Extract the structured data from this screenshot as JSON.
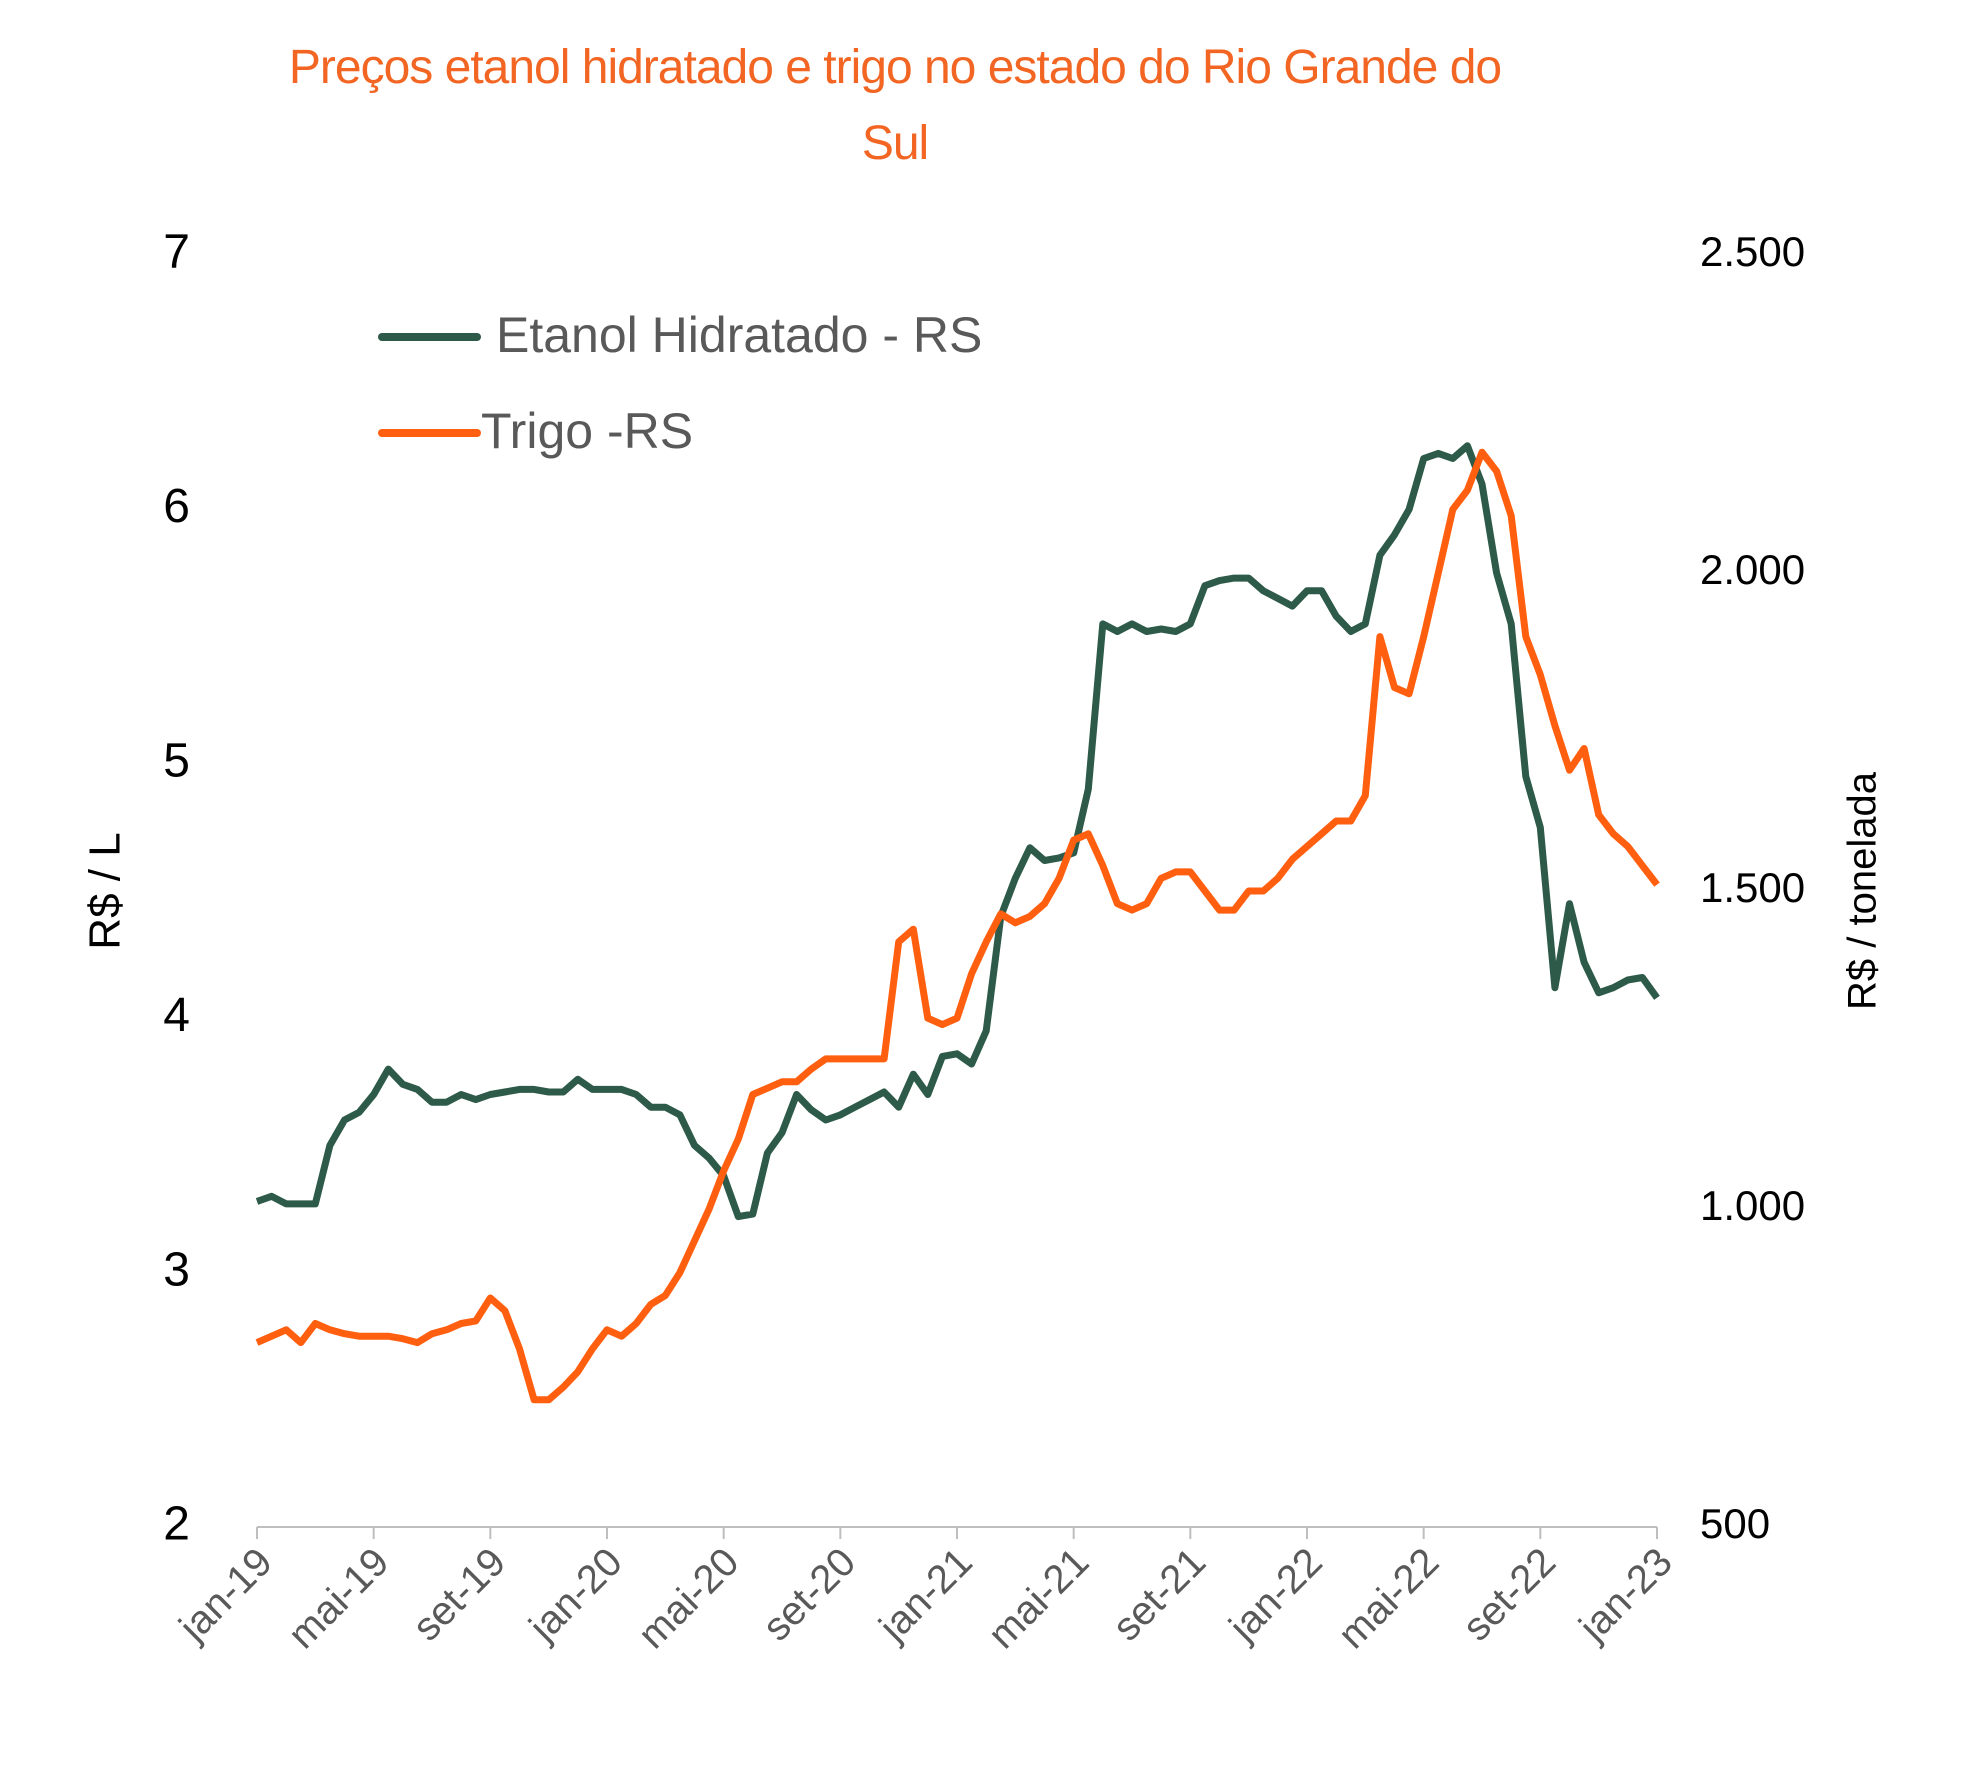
{
  "chart_data": {
    "type": "line",
    "title": "Preços etanol hidratado e trigo no estado do Rio Grande do Sul",
    "ylabel": "R$ / L",
    "y2label": "R$ / tonelada",
    "categories": [
      "jan-19",
      null,
      null,
      null,
      null,
      null,
      null,
      null,
      "mai-19",
      null,
      null,
      null,
      null,
      null,
      null,
      null,
      "set-19",
      null,
      null,
      null,
      null,
      null,
      null,
      null,
      "jan-20",
      null,
      null,
      null,
      null,
      null,
      null,
      null,
      "mai-20",
      null,
      null,
      null,
      null,
      null,
      null,
      null,
      "set-20",
      null,
      null,
      null,
      null,
      null,
      null,
      null,
      "jan-21",
      null,
      null,
      null,
      null,
      null,
      null,
      null,
      "mai-21",
      null,
      null,
      null,
      null,
      null,
      null,
      null,
      "set-21",
      null,
      null,
      null,
      null,
      null,
      null,
      null,
      "jan-22",
      null,
      null,
      null,
      null,
      null,
      null,
      null,
      "mai-22",
      null,
      null,
      null,
      null,
      null,
      null,
      null,
      "set-22",
      null,
      null,
      null,
      null,
      null,
      null,
      null,
      "jan-23"
    ],
    "series": [
      {
        "name": "Etanol Hidratado - RS",
        "color": "#2e5a4a",
        "values": [
          3.28,
          3.3,
          3.27,
          3.27,
          3.27,
          3.5,
          3.6,
          3.63,
          3.7,
          3.8,
          3.74,
          3.72,
          3.67,
          3.67,
          3.7,
          3.68,
          3.7,
          3.71,
          3.72,
          3.72,
          3.71,
          3.71,
          3.76,
          3.72,
          3.72,
          3.72,
          3.7,
          3.65,
          3.65,
          3.62,
          3.5,
          3.45,
          3.38,
          3.22,
          3.23,
          3.47,
          3.55,
          3.7,
          3.64,
          3.6,
          3.62,
          3.65,
          3.68,
          3.71,
          3.65,
          3.78,
          3.7,
          3.85,
          3.86,
          3.82,
          3.95,
          4.4,
          4.55,
          4.67,
          4.62,
          4.63,
          4.65,
          4.9,
          5.55,
          5.52,
          5.55,
          5.52,
          5.53,
          5.52,
          5.55,
          5.7,
          5.72,
          5.73,
          5.73,
          5.68,
          5.65,
          5.62,
          5.68,
          5.68,
          5.58,
          5.52,
          5.55,
          5.82,
          5.9,
          6.0,
          6.2,
          6.22,
          6.2,
          6.25,
          6.1,
          5.75,
          5.55,
          4.95,
          4.75,
          4.12,
          4.45,
          4.22,
          4.1,
          4.12,
          4.15,
          4.16,
          4.08
        ]
      },
      {
        "name": "Trigo -RS",
        "color": "#ff5f0f",
        "axis": "y2",
        "values": [
          790,
          800,
          810,
          790,
          820,
          810,
          804,
          800,
          800,
          800,
          796,
          790,
          804,
          810,
          820,
          824,
          860,
          840,
          780,
          700,
          700,
          720,
          744,
          780,
          810,
          800,
          820,
          850,
          864,
          900,
          950,
          1000,
          1060,
          1110,
          1180,
          1190,
          1200,
          1200,
          1220,
          1236,
          1236,
          1236,
          1236,
          1236,
          1420,
          1440,
          1300,
          1290,
          1300,
          1370,
          1420,
          1464,
          1450,
          1460,
          1480,
          1520,
          1580,
          1590,
          1540,
          1480,
          1470,
          1480,
          1520,
          1530,
          1530,
          1500,
          1470,
          1470,
          1500,
          1500,
          1520,
          1550,
          1570,
          1590,
          1610,
          1610,
          1650,
          1900,
          1820,
          1810,
          1900,
          2000,
          2100,
          2130,
          2190,
          2160,
          2090,
          1900,
          1840,
          1760,
          1690,
          1724,
          1620,
          1590,
          1570,
          1540,
          1510
        ]
      }
    ],
    "ylim": [
      2,
      7
    ],
    "yticks": [
      2,
      3,
      4,
      5,
      6,
      7
    ],
    "y2lim": [
      500,
      2500
    ],
    "y2ticks": [
      500,
      {
        "value": 1000,
        "label": "1.000"
      },
      {
        "value": 1500,
        "label": "1.500"
      },
      {
        "value": 2000,
        "label": "2.000"
      },
      {
        "value": 2500,
        "label": "2.500"
      }
    ],
    "grid": false,
    "legend": "top-left"
  }
}
